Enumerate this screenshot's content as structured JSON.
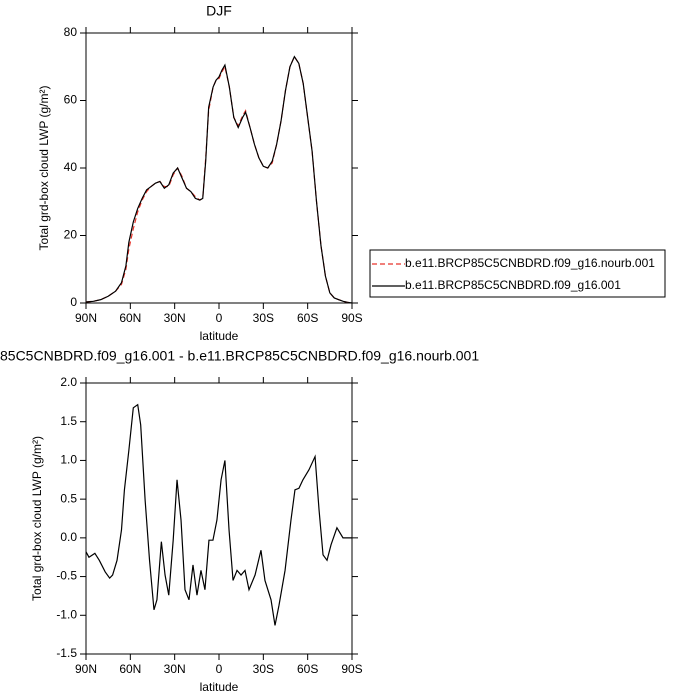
{
  "chart_data": [
    {
      "type": "line",
      "title": "DJF",
      "xlabel": "latitude",
      "ylabel": "Total grd-box cloud LWP (g/m²)",
      "x": [
        90,
        85,
        80,
        75,
        70,
        66,
        63,
        61,
        58,
        55,
        52,
        49,
        46,
        43,
        40,
        37,
        34,
        31,
        28,
        25,
        22,
        19,
        16,
        13,
        11,
        9,
        7,
        4,
        2,
        0,
        -2,
        -4,
        -7,
        -10,
        -13,
        -16,
        -18,
        -21,
        -24,
        -27,
        -30,
        -33,
        -36,
        -39,
        -42,
        -45,
        -48,
        -51,
        -54,
        -57,
        -60,
        -63,
        -66,
        -69,
        -72,
        -75,
        -78,
        -81,
        -84,
        -87,
        -90
      ],
      "series": [
        {
          "name": "b.e11.BRCP85C5CNBDRD.f09_g16.nourb.001",
          "color": "#e8332a",
          "dash": true,
          "values": [
            0.3,
            0.5,
            1,
            2,
            3.5,
            5.5,
            10,
            16,
            22,
            27,
            30.5,
            33,
            34.5,
            35.5,
            36,
            34.5,
            34.5,
            38,
            40,
            37.5,
            34,
            33,
            31.5,
            30.5,
            31,
            43,
            57,
            64,
            66,
            66.5,
            68.5,
            70,
            64,
            55,
            52.5,
            55.5,
            57,
            52,
            47,
            43,
            40.5,
            40,
            41.5,
            47,
            54,
            63,
            70,
            73,
            71,
            65,
            55,
            45,
            30,
            17,
            8,
            3,
            1.5,
            1,
            0.5,
            0.2,
            0
          ]
        },
        {
          "name": "b.e11.BRCP85C5CNBDRD.f09_g16.001",
          "color": "#000000",
          "dash": false,
          "values": [
            0.3,
            0.5,
            1,
            2,
            3.5,
            6,
            11,
            18,
            24,
            28,
            31,
            33.5,
            34.5,
            35.5,
            36,
            34,
            35,
            38.5,
            40,
            37,
            34,
            33,
            31,
            30.5,
            31,
            42,
            58,
            64,
            66,
            67,
            69,
            70.5,
            64,
            55,
            52,
            55,
            56.5,
            52,
            47,
            43,
            40.5,
            40,
            42,
            47,
            54,
            63,
            70,
            73,
            71,
            65,
            55,
            45,
            30,
            17,
            8,
            3,
            1.5,
            1,
            0.5,
            0.2,
            0
          ]
        }
      ],
      "xlim": [
        90,
        -90
      ],
      "xticks": [
        {
          "value": 90,
          "label": "90N"
        },
        {
          "value": 60,
          "label": "60N"
        },
        {
          "value": 30,
          "label": "30N"
        },
        0,
        {
          "value": -30,
          "label": "30S"
        },
        {
          "value": -60,
          "label": "60S"
        },
        {
          "value": -90,
          "label": "90S"
        }
      ],
      "ylim": [
        0,
        80
      ],
      "yticks": [
        0,
        20,
        40,
        60,
        80
      ],
      "legend": "right"
    },
    {
      "type": "line",
      "title": "85C5CNBDRD.f09_g16.001 - b.e11.BRCP85C5CNBDRD.f09_g16.nourb.001",
      "xlabel": "latitude",
      "ylabel": "Total grd-box cloud LWP (g/m²)",
      "x": [
        90,
        88,
        84,
        81,
        77,
        74,
        72,
        69,
        66,
        64,
        61,
        58,
        55,
        53,
        50,
        47,
        44,
        42,
        39,
        36.5,
        34,
        31,
        28.4,
        25.7,
        23,
        20.3,
        17.6,
        14.9,
        12.2,
        9.5,
        6.8,
        4.1,
        1.4,
        -1.4,
        -4,
        -6.8,
        -9.5,
        -12.2,
        -14.9,
        -17.6,
        -20.3,
        -24.4,
        -28.4,
        -31.1,
        -35.2,
        -37.9,
        -40.6,
        -44.7,
        -48.7,
        -51.4,
        -54.1,
        -56.8,
        -60.9,
        -65,
        -67.7,
        -70.4,
        -73.1,
        -75.8,
        -79.8,
        -83.9,
        -90
      ],
      "series": [
        {
          "color": "#000000",
          "dash": false,
          "values": [
            -0.18,
            -0.25,
            -0.2,
            -0.29,
            -0.44,
            -0.52,
            -0.48,
            -0.29,
            0.1,
            0.62,
            1.13,
            1.68,
            1.72,
            1.46,
            0.49,
            -0.29,
            -0.93,
            -0.8,
            -0.05,
            -0.48,
            -0.74,
            -0.03,
            0.75,
            0.23,
            -0.67,
            -0.8,
            -0.35,
            -0.74,
            -0.42,
            -0.67,
            -0.03,
            -0.03,
            0.23,
            0.75,
            1.0,
            0.1,
            -0.55,
            -0.42,
            -0.48,
            -0.42,
            -0.67,
            -0.48,
            -0.16,
            -0.55,
            -0.8,
            -1.13,
            -0.87,
            -0.42,
            0.23,
            0.62,
            0.64,
            0.75,
            0.88,
            1.05,
            0.36,
            -0.22,
            -0.29,
            -0.09,
            0.13,
            0.0,
            0.0
          ]
        }
      ],
      "xlim": [
        90,
        -90
      ],
      "xticks": [
        {
          "value": 90,
          "label": "90N"
        },
        {
          "value": 60,
          "label": "60N"
        },
        {
          "value": 30,
          "label": "30N"
        },
        0,
        {
          "value": -30,
          "label": "30S"
        },
        {
          "value": -60,
          "label": "60S"
        },
        {
          "value": -90,
          "label": "90S"
        }
      ],
      "ylim": [
        -1.5,
        2.0
      ],
      "yticks": [
        {
          "value": 2.0,
          "label": "2.0"
        },
        1.5,
        {
          "value": 1.0,
          "label": "1.0"
        },
        0.5,
        {
          "value": 0.0,
          "label": "0.0"
        },
        -0.5,
        {
          "value": -1.0,
          "label": "-1.0"
        },
        -1.5
      ]
    }
  ]
}
